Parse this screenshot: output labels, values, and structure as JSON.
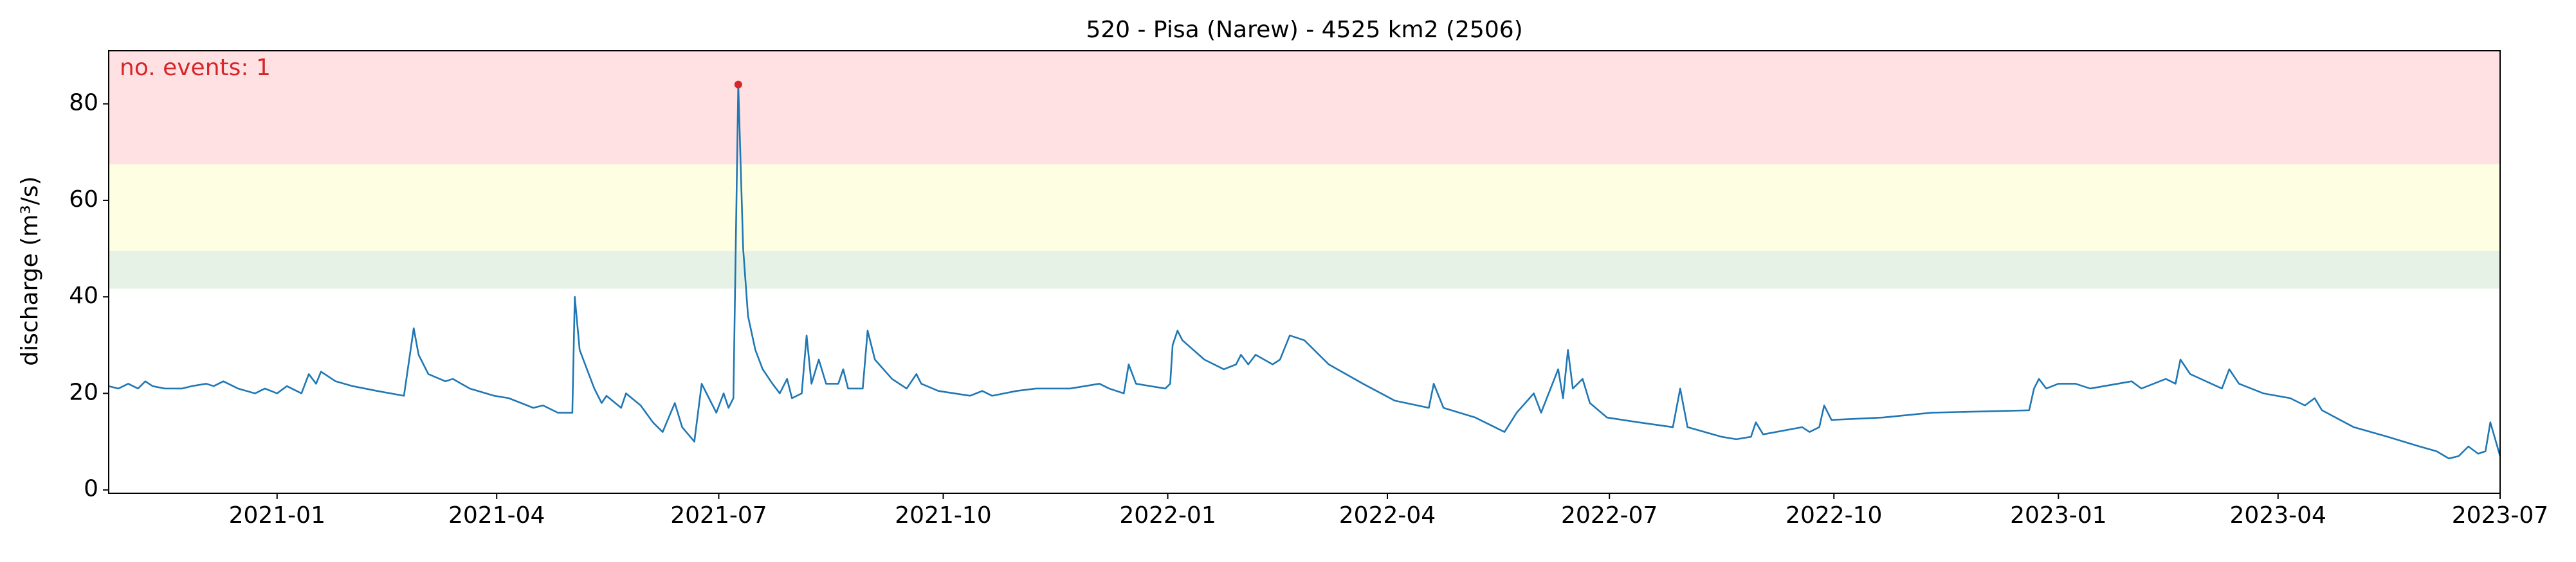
{
  "chart_data": {
    "type": "line",
    "title": "520 - Pisa (Narew) - 4525 km2 (2506)",
    "y_label": "discharge (m³/s)",
    "annotation": "no. events: 1",
    "annotation_color": "#d62728",
    "color": "#1f77b4",
    "xlim": [
      "2020-10-24",
      "2023-07-01"
    ],
    "xticks": [
      "2021-01",
      "2021-04",
      "2021-07",
      "2021-10",
      "2022-01",
      "2022-04",
      "2022-07",
      "2022-10",
      "2023-01",
      "2023-04",
      "2023-07"
    ],
    "ylim": [
      -0.7,
      91
    ],
    "yticks": [
      0,
      20,
      40,
      60,
      80
    ],
    "bands": [
      {
        "from": 41.7,
        "to": 49.5,
        "color": "#e5f2e5"
      },
      {
        "from": 49.5,
        "to": 67.5,
        "color": "#fefee2"
      },
      {
        "from": 67.5,
        "to": 91,
        "color": "#ffe1e4"
      }
    ],
    "events": {
      "x": [
        "2021-07-09"
      ],
      "values": [
        84
      ],
      "color": "#d62728"
    },
    "x": [
      "2020-10-24",
      "2020-10-28",
      "2020-11-01",
      "2020-11-05",
      "2020-11-08",
      "2020-11-11",
      "2020-11-16",
      "2020-11-23",
      "2020-11-27",
      "2020-12-03",
      "2020-12-06",
      "2020-12-10",
      "2020-12-16",
      "2020-12-23",
      "2020-12-27",
      "2021-01-01",
      "2021-01-05",
      "2021-01-11",
      "2021-01-14",
      "2021-01-17",
      "2021-01-19",
      "2021-01-25",
      "2021-02-01",
      "2021-02-11",
      "2021-02-22",
      "2021-02-26",
      "2021-02-28",
      "2021-03-04",
      "2021-03-11",
      "2021-03-14",
      "2021-03-21",
      "2021-03-31",
      "2021-04-06",
      "2021-04-16",
      "2021-04-20",
      "2021-04-26",
      "2021-05-02",
      "2021-05-03",
      "2021-05-05",
      "2021-05-08",
      "2021-05-11",
      "2021-05-14",
      "2021-05-16",
      "2021-05-22",
      "2021-05-24",
      "2021-05-30",
      "2021-06-04",
      "2021-06-08",
      "2021-06-13",
      "2021-06-16",
      "2021-06-21",
      "2021-06-24",
      "2021-06-27",
      "2021-06-30",
      "2021-07-03",
      "2021-07-05",
      "2021-07-07",
      "2021-07-09",
      "2021-07-11",
      "2021-07-13",
      "2021-07-16",
      "2021-07-19",
      "2021-07-23",
      "2021-07-26",
      "2021-07-29",
      "2021-07-31",
      "2021-08-04",
      "2021-08-06",
      "2021-08-08",
      "2021-08-11",
      "2021-08-14",
      "2021-08-19",
      "2021-08-21",
      "2021-08-23",
      "2021-08-29",
      "2021-08-31",
      "2021-09-03",
      "2021-09-10",
      "2021-09-16",
      "2021-09-20",
      "2021-09-22",
      "2021-09-29",
      "2021-10-12",
      "2021-10-17",
      "2021-10-21",
      "2021-10-31",
      "2021-11-08",
      "2021-11-22",
      "2021-12-04",
      "2021-12-08",
      "2021-12-14",
      "2021-12-16",
      "2021-12-19",
      "2021-12-31",
      "2022-01-02",
      "2022-01-03",
      "2022-01-05",
      "2022-01-07",
      "2022-01-16",
      "2022-01-24",
      "2022-01-29",
      "2022-01-31",
      "2022-02-03",
      "2022-02-06",
      "2022-02-13",
      "2022-02-16",
      "2022-02-20",
      "2022-02-26",
      "2022-03-08",
      "2022-03-22",
      "2022-04-04",
      "2022-04-18",
      "2022-04-20",
      "2022-04-24",
      "2022-05-07",
      "2022-05-19",
      "2022-05-24",
      "2022-05-31",
      "2022-06-03",
      "2022-06-10",
      "2022-06-12",
      "2022-06-14",
      "2022-06-16",
      "2022-06-20",
      "2022-06-23",
      "2022-06-30",
      "2022-07-13",
      "2022-07-27",
      "2022-07-30",
      "2022-08-02",
      "2022-08-16",
      "2022-08-22",
      "2022-08-28",
      "2022-08-30",
      "2022-09-02",
      "2022-09-18",
      "2022-09-21",
      "2022-09-25",
      "2022-09-27",
      "2022-09-30",
      "2022-10-21",
      "2022-11-10",
      "2022-12-20",
      "2022-12-22",
      "2022-12-24",
      "2022-12-27",
      "2023-01-01",
      "2023-01-08",
      "2023-01-14",
      "2023-01-31",
      "2023-02-04",
      "2023-02-14",
      "2023-02-18",
      "2023-02-20",
      "2023-02-24",
      "2023-03-09",
      "2023-03-12",
      "2023-03-16",
      "2023-03-26",
      "2023-04-06",
      "2023-04-12",
      "2023-04-16",
      "2023-04-19",
      "2023-05-02",
      "2023-05-16",
      "2023-05-29",
      "2023-06-05",
      "2023-06-10",
      "2023-06-14",
      "2023-06-18",
      "2023-06-22",
      "2023-06-25",
      "2023-06-27",
      "2023-07-01"
    ],
    "values": [
      21.5,
      21,
      22,
      21,
      22.5,
      21.5,
      21,
      21,
      21.5,
      22,
      21.5,
      22.5,
      21,
      20,
      21,
      20,
      21.5,
      20,
      24,
      22,
      24.5,
      22.5,
      21.5,
      20.5,
      19.5,
      33.5,
      28,
      24,
      22.5,
      23,
      21,
      19.5,
      19,
      17,
      17.5,
      16,
      16,
      40,
      29,
      25,
      21,
      18,
      19.5,
      17,
      20,
      17.5,
      14,
      12,
      18,
      13,
      10,
      22,
      19,
      16,
      20,
      17,
      19,
      84,
      50,
      36,
      29,
      25,
      22,
      20,
      23,
      19,
      20,
      32,
      22,
      27,
      22,
      22,
      25,
      21,
      21,
      33,
      27,
      23,
      21,
      24,
      22,
      20.5,
      19.5,
      20.5,
      19.5,
      20.5,
      21,
      21,
      22,
      21,
      20,
      26,
      22,
      21,
      22,
      30,
      33,
      31,
      27,
      25,
      26,
      28,
      26,
      28,
      26,
      27,
      32,
      31,
      26,
      22,
      18.5,
      17,
      22,
      17,
      15,
      12,
      16,
      20,
      16,
      25,
      19,
      29,
      21,
      23,
      18,
      15,
      14,
      13,
      21,
      13,
      11,
      10.5,
      11,
      14,
      11.5,
      13,
      12,
      13,
      17.5,
      14.5,
      15,
      16,
      16.5,
      21,
      23,
      21,
      22,
      22,
      21,
      22.5,
      21,
      23,
      22,
      27,
      24,
      21,
      25,
      22,
      20,
      19,
      17.5,
      19,
      16.5,
      13,
      11,
      9,
      8,
      6.5,
      7,
      9,
      7.5,
      8,
      14,
      7
    ]
  }
}
